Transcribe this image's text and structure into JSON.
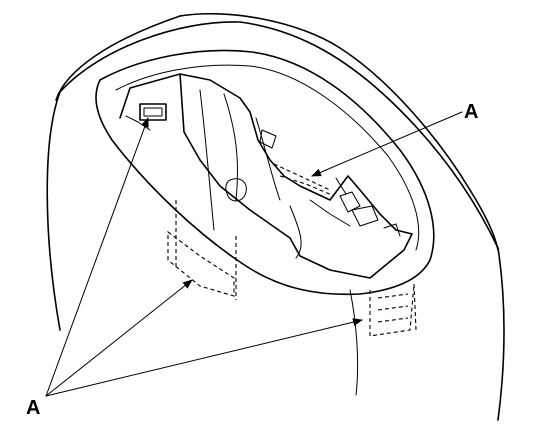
{
  "labels": {
    "callout_upper": "A",
    "callout_lower": "A"
  }
}
